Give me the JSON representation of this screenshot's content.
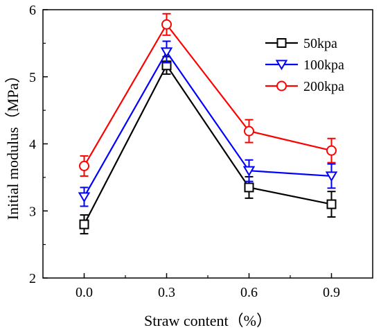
{
  "chart_data": {
    "type": "line",
    "xlabel": "Straw content（%）",
    "ylabel": "Initial modulus（MPa）",
    "x": [
      0.0,
      0.3,
      0.6,
      0.9
    ],
    "x_tick_labels": [
      "0.0",
      "0.3",
      "0.6",
      "0.9"
    ],
    "xlim": [
      -0.15,
      1.05
    ],
    "ylim": [
      2,
      6
    ],
    "y_ticks": [
      2,
      3,
      4,
      5,
      6
    ],
    "y_tick_labels": [
      "2",
      "3",
      "4",
      "5",
      "6"
    ],
    "grid": false,
    "legend_position": "top-right",
    "series": [
      {
        "name": "50kpa",
        "color": "#000000",
        "marker": "square",
        "values": [
          2.8,
          5.17,
          3.35,
          3.1
        ],
        "errors": [
          0.14,
          0.13,
          0.16,
          0.19
        ]
      },
      {
        "name": "100kpa",
        "color": "#0000ff",
        "marker": "triangle-down",
        "values": [
          3.21,
          5.37,
          3.6,
          3.52
        ],
        "errors": [
          0.14,
          0.16,
          0.16,
          0.18
        ]
      },
      {
        "name": "200kpa",
        "color": "#ff0000",
        "marker": "circle",
        "values": [
          3.67,
          5.78,
          4.19,
          3.9
        ],
        "errors": [
          0.15,
          0.16,
          0.17,
          0.18
        ]
      }
    ]
  }
}
